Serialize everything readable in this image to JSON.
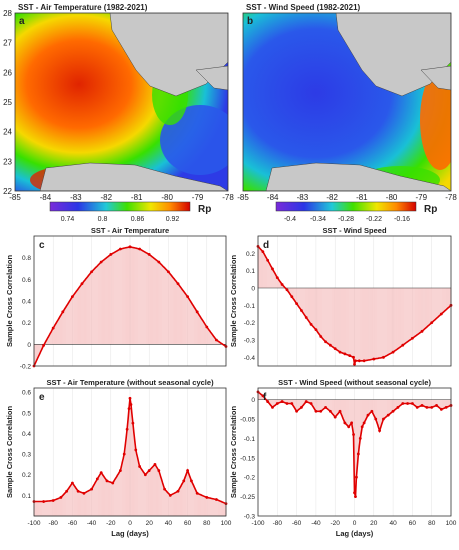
{
  "figure": {
    "map_a": {
      "letter": "a",
      "title": "SST - Air Temperature (1982-2021)",
      "x_ticks": [
        "-85",
        "-84",
        "-83",
        "-82",
        "-81",
        "-80",
        "-79",
        "-78"
      ],
      "y_ticks": [
        "28",
        "27",
        "26",
        "25",
        "24",
        "23",
        "22"
      ],
      "colorbar_ticks": [
        "0.74",
        "0.8",
        "0.86",
        "0.92"
      ],
      "colorbar_label": "Rp",
      "colors": {
        "low": "#7a2bd9",
        "mid": "#3fe000",
        "high": "#e00000",
        "land": "#c8c8c8"
      }
    },
    "map_b": {
      "letter": "b",
      "title": "SST - Wind Speed (1982-2021)",
      "x_ticks": [
        "-85",
        "-84",
        "-83",
        "-82",
        "-81",
        "-80",
        "-79",
        "-78"
      ],
      "colorbar_ticks": [
        "-0.4",
        "-0.34",
        "-0.28",
        "-0.22",
        "-0.16"
      ],
      "colorbar_label": "Rp",
      "colors": {
        "low": "#7a2bd9",
        "mid": "#3fe000",
        "high": "#e00000",
        "land": "#c8c8c8"
      }
    }
  },
  "chart_data": [
    {
      "id": "c",
      "letter": "c",
      "type": "bar",
      "title": "SST - Air Temperature",
      "ylabel": "Sample Cross Correlation",
      "xlabel": "",
      "xlim": [
        -100,
        100
      ],
      "ylim": [
        -0.2,
        1.0
      ],
      "y_ticks": [
        "-0.2",
        "0",
        "0.2",
        "0.4",
        "0.6",
        "0.8"
      ],
      "x_ticks": [],
      "series": [
        {
          "x": [
            -100,
            -90,
            -80,
            -70,
            -60,
            -50,
            -40,
            -30,
            -20,
            -10,
            0,
            10,
            20,
            30,
            40,
            50,
            60,
            70,
            80,
            90,
            100
          ],
          "y": [
            -0.2,
            -0.01,
            0.15,
            0.3,
            0.44,
            0.56,
            0.67,
            0.76,
            0.83,
            0.88,
            0.9,
            0.88,
            0.83,
            0.76,
            0.67,
            0.56,
            0.44,
            0.3,
            0.16,
            0.04,
            -0.02
          ]
        }
      ],
      "colors": {
        "line": "#e00000",
        "bar": "#f3b7b7"
      }
    },
    {
      "id": "d",
      "letter": "d",
      "type": "bar",
      "title": "SST - Wind Speed",
      "ylabel": "Sample Cross Correlation",
      "xlabel": "",
      "xlim": [
        -100,
        100
      ],
      "ylim": [
        -0.45,
        0.3
      ],
      "y_ticks": [
        "-0.4",
        "-0.3",
        "-0.2",
        "-0.1",
        "0",
        "0.1",
        "0.2"
      ],
      "x_ticks": [],
      "series": [
        {
          "x": [
            -100,
            -95,
            -90,
            -85,
            -80,
            -75,
            -70,
            -65,
            -60,
            -55,
            -50,
            -45,
            -40,
            -35,
            -30,
            -25,
            -20,
            -15,
            -10,
            -5,
            -1,
            0,
            1,
            5,
            10,
            20,
            30,
            40,
            50,
            60,
            70,
            80,
            90,
            100
          ],
          "y": [
            0.24,
            0.21,
            0.16,
            0.11,
            0.06,
            0.02,
            -0.01,
            -0.05,
            -0.09,
            -0.13,
            -0.17,
            -0.21,
            -0.24,
            -0.28,
            -0.31,
            -0.33,
            -0.35,
            -0.37,
            -0.38,
            -0.39,
            -0.4,
            -0.44,
            -0.42,
            -0.42,
            -0.42,
            -0.41,
            -0.4,
            -0.37,
            -0.33,
            -0.29,
            -0.25,
            -0.2,
            -0.15,
            -0.1
          ]
        }
      ],
      "colors": {
        "line": "#e00000",
        "bar": "#f3b7b7"
      }
    },
    {
      "id": "e",
      "letter": "e",
      "type": "bar",
      "title": "SST - Air Temperature (without seasonal cycle)",
      "ylabel": "Sample Cross Correlation",
      "xlabel": "Lag (days)",
      "xlim": [
        -100,
        100
      ],
      "ylim": [
        0,
        0.62
      ],
      "y_ticks": [
        "0.1",
        "0.2",
        "0.3",
        "0.4",
        "0.5",
        "0.6"
      ],
      "x_ticks": [
        "-100",
        "-80",
        "-60",
        "-40",
        "-20",
        "0",
        "20",
        "40",
        "60",
        "80",
        "100"
      ],
      "series": [
        {
          "x": [
            -100,
            -90,
            -80,
            -72,
            -66,
            -60,
            -54,
            -48,
            -40,
            -34,
            -30,
            -24,
            -18,
            -10,
            -6,
            -3,
            -1,
            0,
            1,
            3,
            6,
            10,
            16,
            20,
            26,
            30,
            36,
            42,
            50,
            56,
            60,
            64,
            70,
            80,
            90,
            100
          ],
          "y": [
            0.07,
            0.07,
            0.075,
            0.09,
            0.12,
            0.16,
            0.12,
            0.11,
            0.13,
            0.18,
            0.21,
            0.17,
            0.16,
            0.22,
            0.3,
            0.42,
            0.52,
            0.57,
            0.54,
            0.45,
            0.32,
            0.24,
            0.2,
            0.22,
            0.25,
            0.22,
            0.13,
            0.1,
            0.12,
            0.17,
            0.22,
            0.17,
            0.11,
            0.09,
            0.08,
            0.06
          ]
        }
      ],
      "colors": {
        "line": "#e00000",
        "bar": "#f3b7b7"
      }
    },
    {
      "id": "f",
      "letter": "f",
      "type": "bar",
      "title": "SST - Wind Speed (without seasonal cycle)",
      "ylabel": "Sample Cross Correlation",
      "xlabel": "Lag (days)",
      "xlim": [
        -100,
        100
      ],
      "ylim": [
        -0.3,
        0.03
      ],
      "y_ticks": [
        "-0.3",
        "-0.25",
        "-0.2",
        "-0.15",
        "-0.1",
        "-0.05",
        "0"
      ],
      "x_ticks": [
        "-100",
        "-80",
        "-60",
        "-40",
        "-20",
        "0",
        "20",
        "40",
        "60",
        "80",
        "100"
      ],
      "series": [
        {
          "x": [
            -100,
            -95,
            -90,
            -85,
            -80,
            -75,
            -70,
            -65,
            -60,
            -55,
            -50,
            -45,
            -40,
            -35,
            -30,
            -25,
            -20,
            -15,
            -10,
            -6,
            -3,
            -1,
            0,
            1,
            2,
            4,
            6,
            8,
            10,
            14,
            18,
            22,
            26,
            30,
            35,
            40,
            45,
            50,
            55,
            60,
            65,
            70,
            75,
            80,
            85,
            90,
            95,
            100
          ],
          "y": [
            0.02,
            0.01,
            -0.005,
            -0.02,
            -0.01,
            -0.005,
            -0.01,
            -0.01,
            -0.03,
            -0.02,
            -0.005,
            -0.01,
            -0.03,
            -0.03,
            -0.02,
            -0.03,
            -0.045,
            -0.03,
            -0.06,
            -0.07,
            -0.06,
            -0.09,
            -0.24,
            -0.25,
            -0.2,
            -0.14,
            -0.1,
            -0.07,
            -0.06,
            -0.04,
            -0.03,
            -0.05,
            -0.08,
            -0.05,
            -0.04,
            -0.03,
            -0.02,
            -0.01,
            -0.01,
            -0.01,
            -0.02,
            -0.015,
            -0.02,
            -0.02,
            -0.015,
            -0.025,
            -0.02,
            -0.015
          ]
        }
      ],
      "colors": {
        "line": "#e00000",
        "bar": "#f3b7b7"
      }
    }
  ]
}
